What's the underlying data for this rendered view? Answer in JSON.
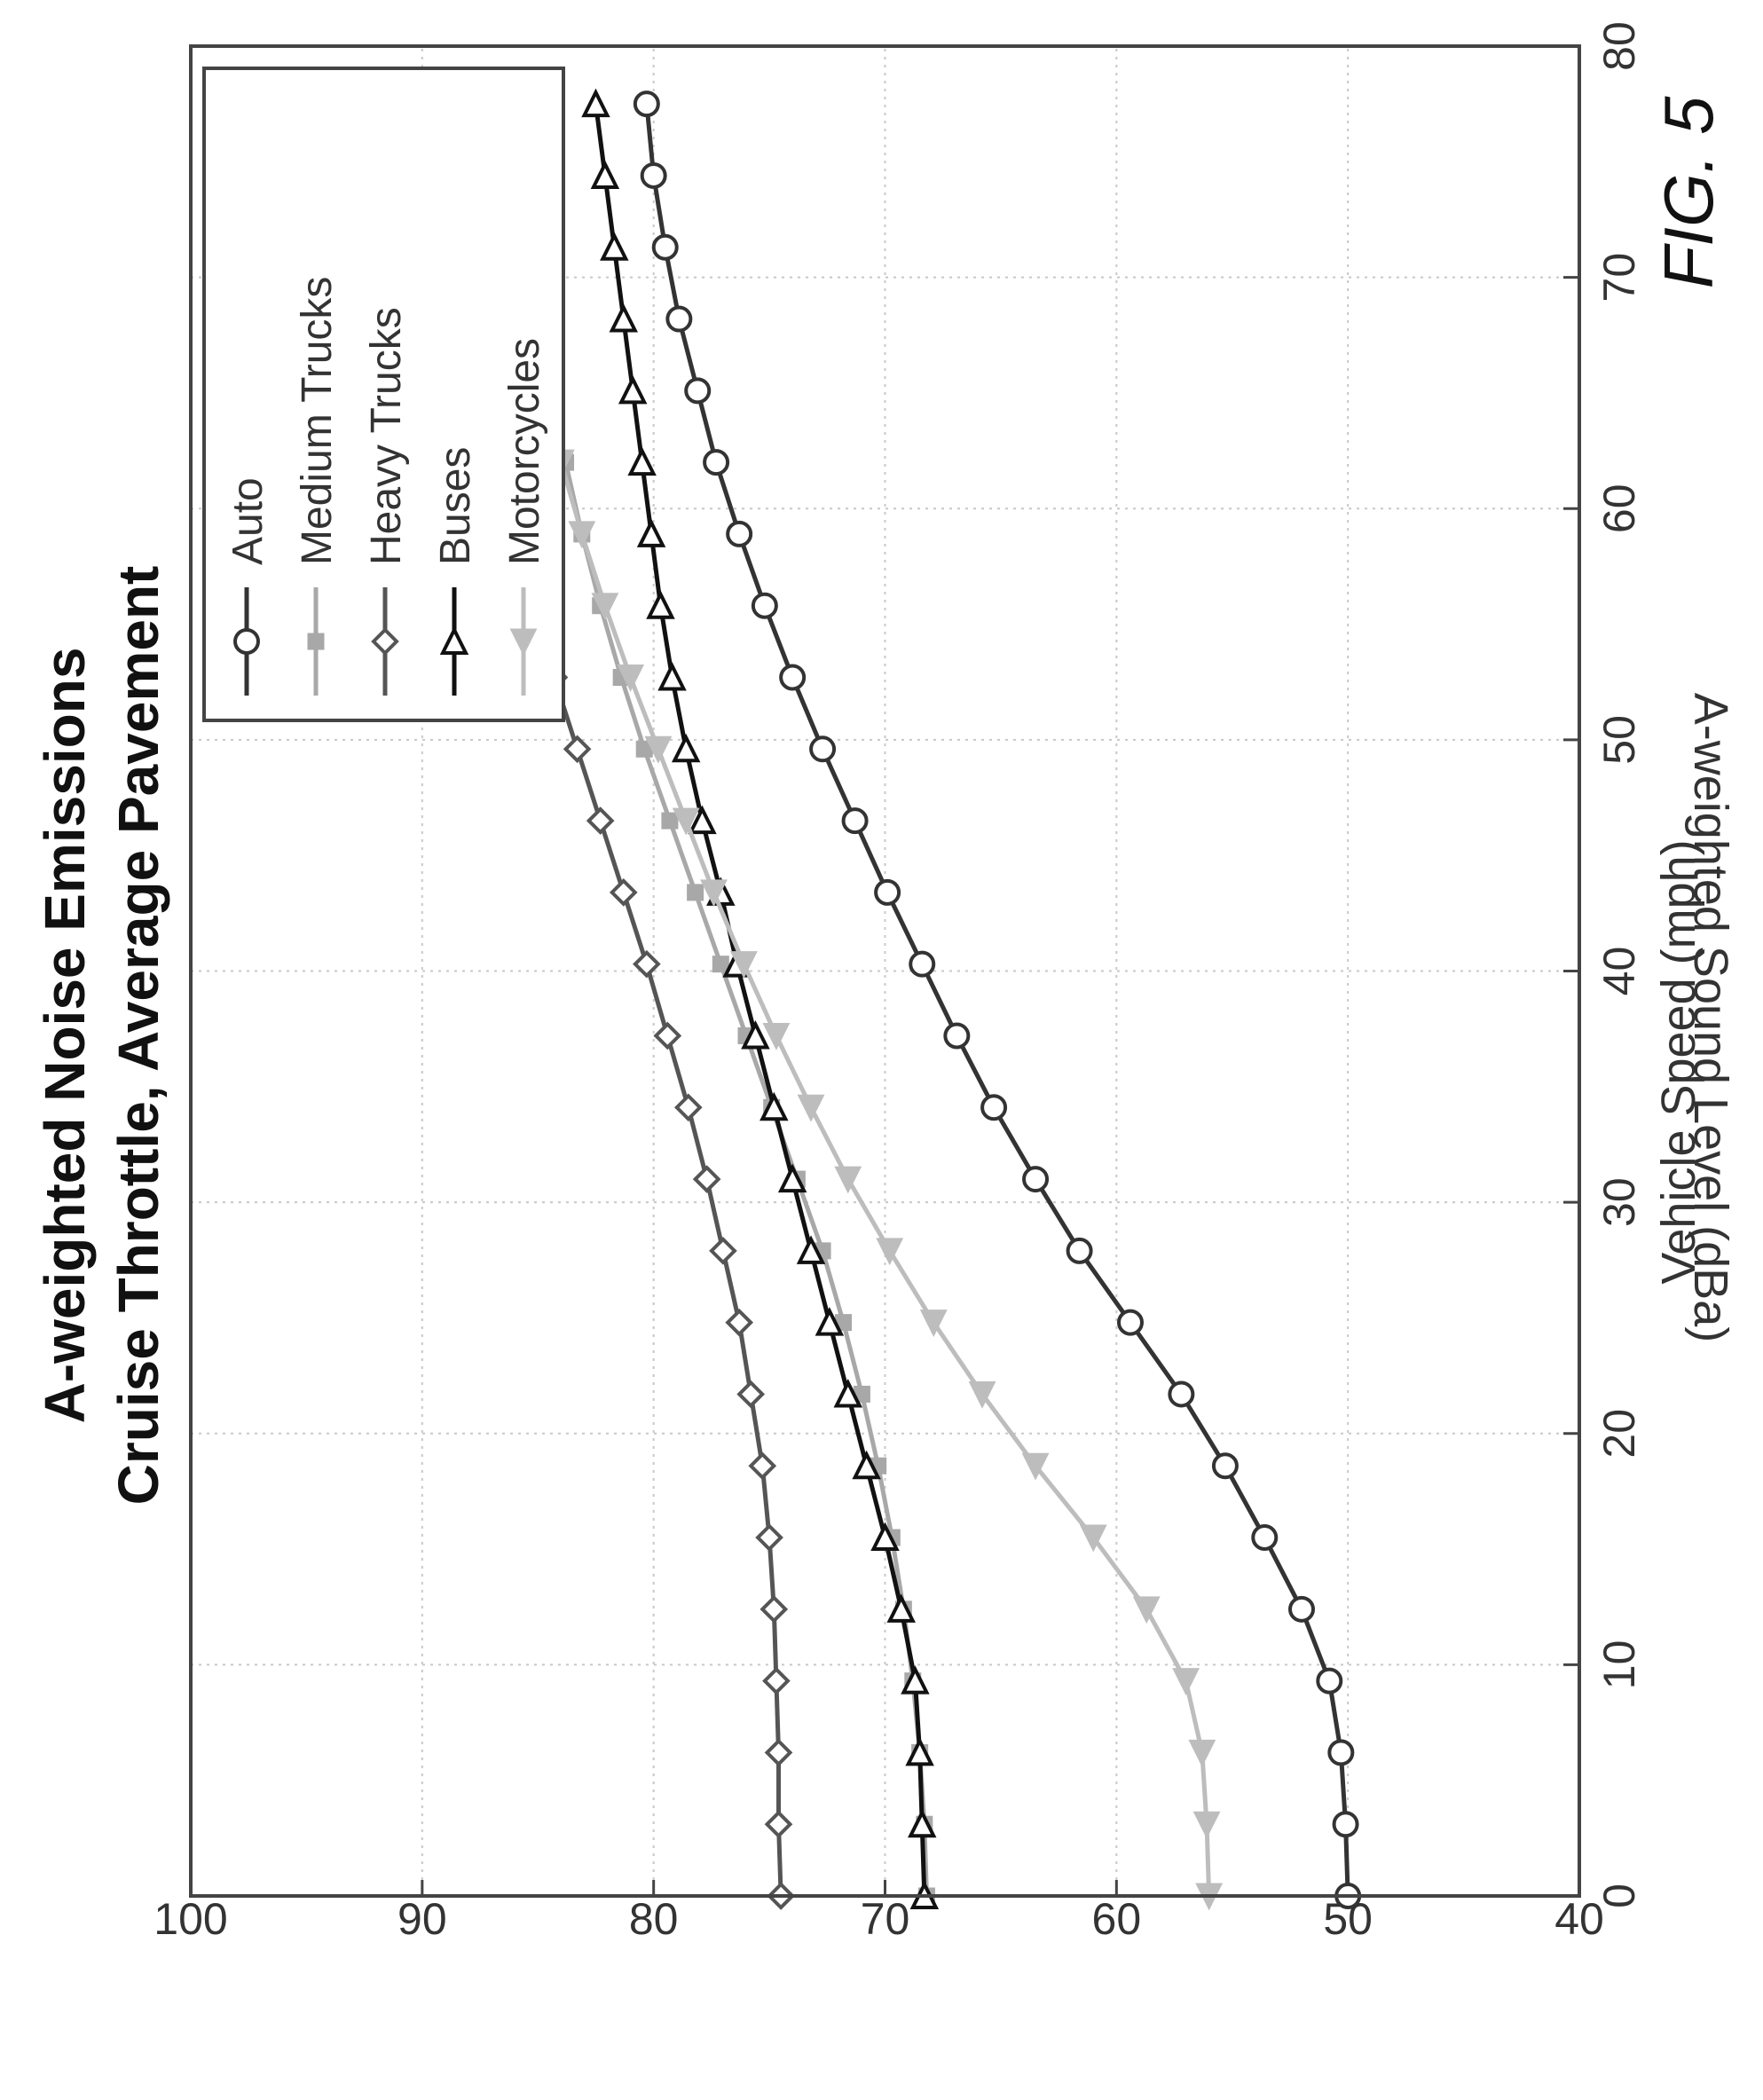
{
  "figure": {
    "label": "FIG. 5"
  },
  "chart_data": {
    "type": "line",
    "title": "A-weighted Noise Emissions",
    "subtitle": "Cruise Throttle, Average Pavement",
    "xlabel": "Vehicle Speed (mph)",
    "ylabel": "A-weighted Sound Level (dBa)",
    "xlim": [
      0,
      80
    ],
    "ylim": [
      40,
      100
    ],
    "xticks": [
      0,
      10,
      20,
      30,
      40,
      50,
      60,
      70,
      80
    ],
    "yticks": [
      40,
      50,
      60,
      70,
      80,
      90,
      100
    ],
    "grid": true,
    "legend_position": "top-left",
    "orientation": "rotated 90 degrees",
    "x": [
      0,
      3.1,
      6.2,
      9.3,
      12.4,
      15.5,
      18.6,
      21.7,
      24.8,
      27.9,
      31,
      34.1,
      37.2,
      40.3,
      43.4,
      46.5,
      49.6,
      52.7,
      55.8,
      58.9,
      62,
      65.1,
      68.2,
      71.3,
      74.4,
      77.5
    ],
    "series": [
      {
        "name": "Auto",
        "marker": "circle",
        "color": "#333333",
        "values": [
          50.0,
          50.1,
          50.3,
          50.8,
          52.0,
          53.6,
          55.3,
          57.2,
          59.4,
          61.6,
          63.5,
          65.3,
          66.9,
          68.4,
          69.9,
          71.3,
          72.7,
          74.0,
          75.2,
          76.3,
          77.3,
          78.1,
          78.9,
          79.5,
          80.0,
          80.3
        ]
      },
      {
        "name": "Medium Trucks",
        "marker": "square",
        "color": "#a8a8a8",
        "values": [
          68.2,
          68.3,
          68.5,
          68.8,
          69.2,
          69.7,
          70.3,
          71.0,
          71.8,
          72.7,
          73.8,
          74.9,
          76.0,
          77.1,
          78.2,
          79.3,
          80.4,
          81.4,
          82.3,
          83.1,
          83.8,
          84.5,
          85.0,
          85.5,
          85.9,
          86.2
        ]
      },
      {
        "name": "Heavy Trucks",
        "marker": "diamond",
        "color": "#555555",
        "values": [
          74.5,
          74.6,
          74.6,
          74.7,
          74.8,
          75.0,
          75.3,
          75.8,
          76.3,
          77.0,
          77.7,
          78.5,
          79.4,
          80.3,
          81.3,
          82.3,
          83.3,
          84.3,
          85.2,
          86.1,
          86.9,
          87.6,
          88.2,
          88.7,
          89.1,
          89.4
        ]
      },
      {
        "name": "Buses",
        "marker": "triangle-right",
        "color": "#111111",
        "values": [
          68.3,
          68.4,
          68.5,
          68.7,
          69.3,
          70.0,
          70.8,
          71.6,
          72.4,
          73.2,
          74.0,
          74.8,
          75.6,
          76.4,
          77.1,
          77.9,
          78.6,
          79.2,
          79.7,
          80.1,
          80.5,
          80.9,
          81.3,
          81.7,
          82.1,
          82.5
        ]
      },
      {
        "name": "Motorcycles",
        "marker": "triangle-left",
        "color": "#bdbdbd",
        "values": [
          56.0,
          56.1,
          56.3,
          57.0,
          58.7,
          61.0,
          63.5,
          65.8,
          67.9,
          69.8,
          71.6,
          73.2,
          74.7,
          76.1,
          77.4,
          78.6,
          79.8,
          81.0,
          82.1,
          83.1,
          84.0,
          84.8,
          85.6,
          86.3,
          87.0,
          87.6
        ]
      }
    ]
  }
}
